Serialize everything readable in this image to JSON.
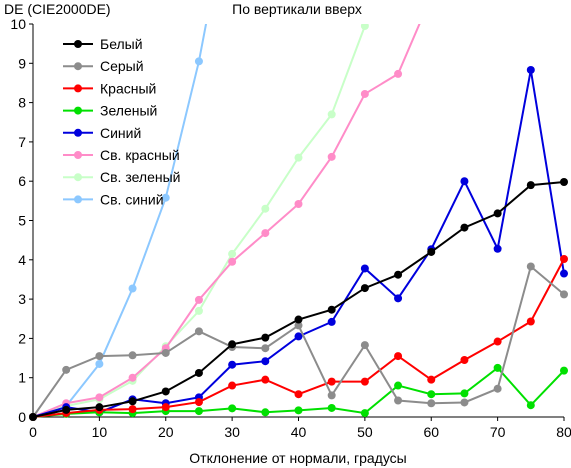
{
  "chart_data": {
    "type": "line",
    "title": "По вертикали вверх",
    "ylabel": "DE (CIE2000DE)",
    "xlabel": "Отклонение от нормали, градусы",
    "xlim": [
      0,
      80
    ],
    "ylim": [
      0,
      10
    ],
    "x_ticks": [
      0,
      10,
      20,
      30,
      40,
      50,
      60,
      70,
      80
    ],
    "y_ticks": [
      0,
      1,
      2,
      3,
      4,
      5,
      6,
      7,
      8,
      9,
      10
    ],
    "grid": false,
    "legend_position": "top-left",
    "x": [
      0,
      5,
      10,
      15,
      20,
      25,
      30,
      35,
      40,
      45,
      50,
      55,
      60,
      65,
      70,
      75,
      80
    ],
    "series": [
      {
        "name": "Белый",
        "color": "#000000",
        "values": [
          0.0,
          0.18,
          0.25,
          0.4,
          0.65,
          1.12,
          1.85,
          2.02,
          2.48,
          2.73,
          3.28,
          3.62,
          4.2,
          4.82,
          5.18,
          5.9,
          5.98
        ]
      },
      {
        "name": "Серый",
        "color": "#8c8c8c",
        "values": [
          0.0,
          1.2,
          1.55,
          1.57,
          1.63,
          2.18,
          1.78,
          1.75,
          2.33,
          0.55,
          1.83,
          0.42,
          0.35,
          0.37,
          0.72,
          3.83,
          3.12
        ]
      },
      {
        "name": "Красный",
        "color": "#ff0000",
        "values": [
          0.0,
          0.1,
          0.18,
          0.2,
          0.25,
          0.38,
          0.8,
          0.95,
          0.58,
          0.9,
          0.9,
          1.55,
          0.95,
          1.45,
          1.92,
          2.43,
          4.02
        ]
      },
      {
        "name": "Зеленый",
        "color": "#00e000",
        "values": [
          0.0,
          0.08,
          0.12,
          0.1,
          0.15,
          0.15,
          0.22,
          0.12,
          0.17,
          0.23,
          0.1,
          0.8,
          0.58,
          0.6,
          1.25,
          0.3,
          1.18
        ]
      },
      {
        "name": "Синий",
        "color": "#0000dd",
        "values": [
          0.0,
          0.25,
          0.12,
          0.45,
          0.35,
          0.5,
          1.33,
          1.42,
          2.05,
          2.42,
          3.78,
          3.02,
          4.27,
          6.0,
          4.28,
          8.83,
          3.65
        ]
      },
      {
        "name": "Св. красный",
        "color": "#ff8cc8",
        "values": [
          0.0,
          0.35,
          0.5,
          1.0,
          1.75,
          2.98,
          3.95,
          4.68,
          5.42,
          6.62,
          8.22,
          8.73,
          10.7,
          null,
          null,
          null,
          null
        ]
      },
      {
        "name": "Св. зеленый",
        "color": "#c8ffc8",
        "values": [
          0.0,
          0.28,
          0.45,
          0.92,
          1.8,
          2.7,
          4.15,
          5.3,
          6.6,
          7.7,
          9.95,
          12.3,
          null,
          null,
          null,
          null,
          null
        ]
      },
      {
        "name": "Св. синий",
        "color": "#8cc8ff",
        "values": [
          0.0,
          0.28,
          1.35,
          3.27,
          5.58,
          9.05,
          13.5,
          null,
          null,
          null,
          null,
          null,
          null,
          null,
          null,
          null,
          null
        ]
      }
    ]
  }
}
